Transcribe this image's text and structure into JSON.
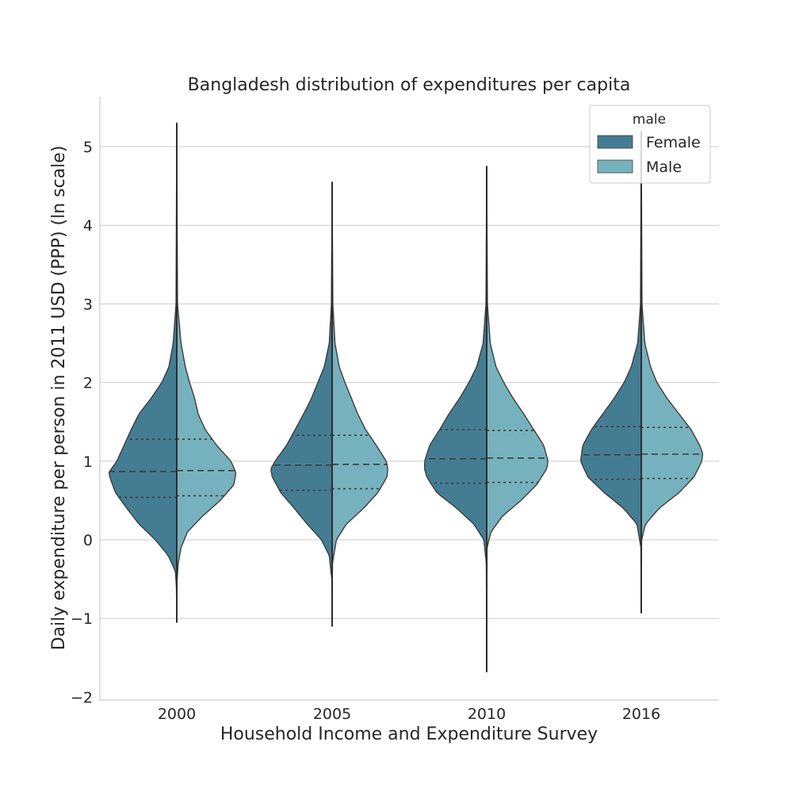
{
  "chart_data": {
    "type": "violin",
    "title": "Bangladesh distribution of expenditures per capita",
    "xlabel": "Household Income and Expenditure Survey",
    "ylabel": "Daily expenditure per person in 2011 USD (PPP) (ln scale)",
    "ylim": [
      -2.0,
      5.6
    ],
    "yticks": [
      -2,
      -1,
      0,
      1,
      2,
      3,
      4,
      5
    ],
    "ytick_labels": [
      "−2",
      "−1",
      "0",
      "1",
      "2",
      "3",
      "4",
      "5"
    ],
    "grid": "horizontal",
    "split": true,
    "categories": [
      "2000",
      "2005",
      "2010",
      "2016"
    ],
    "legend": {
      "title": "male",
      "placement": "top-right",
      "entries": [
        {
          "label": "Female",
          "color": "#447d92"
        },
        {
          "label": "Male",
          "color": "#76b2bd"
        }
      ]
    },
    "series": [
      {
        "name": "Female",
        "color": "#447d92",
        "groups": [
          {
            "min": -1.05,
            "max": 5.3,
            "q1": 0.54,
            "median": 0.87,
            "q3": 1.28,
            "profile": [
              [
                -1.05,
                0
              ],
              [
                -0.6,
                0.005
              ],
              [
                -0.4,
                0.02
              ],
              [
                -0.2,
                0.12
              ],
              [
                0,
                0.3
              ],
              [
                0.2,
                0.53
              ],
              [
                0.4,
                0.7
              ],
              [
                0.6,
                0.86
              ],
              [
                0.8,
                0.94
              ],
              [
                0.86,
                0.95
              ],
              [
                1.0,
                0.84
              ],
              [
                1.2,
                0.74
              ],
              [
                1.4,
                0.64
              ],
              [
                1.6,
                0.53
              ],
              [
                1.8,
                0.36
              ],
              [
                2.0,
                0.21
              ],
              [
                2.2,
                0.11
              ],
              [
                2.5,
                0.05
              ],
              [
                3.0,
                0.01
              ],
              [
                5.3,
                0
              ]
            ]
          },
          {
            "min": -1.1,
            "max": 4.55,
            "q1": 0.63,
            "median": 0.95,
            "q3": 1.33,
            "profile": [
              [
                -1.1,
                0
              ],
              [
                -0.5,
                0.005
              ],
              [
                -0.2,
                0.04
              ],
              [
                0,
                0.15
              ],
              [
                0.2,
                0.35
              ],
              [
                0.4,
                0.53
              ],
              [
                0.6,
                0.72
              ],
              [
                0.8,
                0.84
              ],
              [
                0.9,
                0.86
              ],
              [
                1.0,
                0.8
              ],
              [
                1.2,
                0.64
              ],
              [
                1.4,
                0.52
              ],
              [
                1.6,
                0.4
              ],
              [
                1.8,
                0.29
              ],
              [
                2.0,
                0.2
              ],
              [
                2.2,
                0.11
              ],
              [
                2.5,
                0.04
              ],
              [
                3.0,
                0.01
              ],
              [
                4.55,
                0
              ]
            ]
          },
          {
            "min": -1.68,
            "max": 4.75,
            "q1": 0.72,
            "median": 1.03,
            "q3": 1.4,
            "profile": [
              [
                -1.68,
                0
              ],
              [
                -0.3,
                0.005
              ],
              [
                0,
                0.04
              ],
              [
                0.2,
                0.18
              ],
              [
                0.4,
                0.42
              ],
              [
                0.6,
                0.7
              ],
              [
                0.8,
                0.84
              ],
              [
                0.9,
                0.87
              ],
              [
                1.0,
                0.87
              ],
              [
                1.2,
                0.8
              ],
              [
                1.4,
                0.66
              ],
              [
                1.6,
                0.53
              ],
              [
                1.8,
                0.38
              ],
              [
                2.0,
                0.25
              ],
              [
                2.2,
                0.14
              ],
              [
                2.5,
                0.05
              ],
              [
                3.0,
                0.01
              ],
              [
                4.75,
                0
              ]
            ]
          },
          {
            "min": -0.93,
            "max": 5.2,
            "q1": 0.77,
            "median": 1.08,
            "q3": 1.44,
            "profile": [
              [
                -0.93,
                0
              ],
              [
                -0.1,
                0.005
              ],
              [
                0.2,
                0.06
              ],
              [
                0.4,
                0.25
              ],
              [
                0.6,
                0.52
              ],
              [
                0.8,
                0.75
              ],
              [
                1.0,
                0.85
              ],
              [
                1.2,
                0.82
              ],
              [
                1.4,
                0.7
              ],
              [
                1.6,
                0.54
              ],
              [
                1.8,
                0.38
              ],
              [
                2.0,
                0.24
              ],
              [
                2.2,
                0.14
              ],
              [
                2.5,
                0.05
              ],
              [
                3.0,
                0.01
              ],
              [
                5.2,
                0
              ]
            ]
          }
        ]
      },
      {
        "name": "Male",
        "color": "#76b2bd",
        "groups": [
          {
            "min": -1.05,
            "max": 5.3,
            "q1": 0.56,
            "median": 0.88,
            "q3": 1.28,
            "profile": [
              [
                -1.05,
                0
              ],
              [
                -0.5,
                0.005
              ],
              [
                -0.3,
                0.02
              ],
              [
                -0.1,
                0.06
              ],
              [
                0.1,
                0.15
              ],
              [
                0.3,
                0.36
              ],
              [
                0.5,
                0.61
              ],
              [
                0.7,
                0.8
              ],
              [
                0.85,
                0.83
              ],
              [
                1.0,
                0.76
              ],
              [
                1.2,
                0.56
              ],
              [
                1.4,
                0.4
              ],
              [
                1.6,
                0.3
              ],
              [
                1.8,
                0.25
              ],
              [
                2.0,
                0.18
              ],
              [
                2.2,
                0.12
              ],
              [
                2.5,
                0.06
              ],
              [
                3.0,
                0.01
              ],
              [
                5.3,
                0
              ]
            ]
          },
          {
            "min": -1.1,
            "max": 4.55,
            "q1": 0.65,
            "median": 0.96,
            "q3": 1.33,
            "profile": [
              [
                -1.1,
                0
              ],
              [
                -0.3,
                0.005
              ],
              [
                0,
                0.06
              ],
              [
                0.2,
                0.2
              ],
              [
                0.4,
                0.44
              ],
              [
                0.6,
                0.64
              ],
              [
                0.8,
                0.77
              ],
              [
                0.9,
                0.78
              ],
              [
                1.0,
                0.76
              ],
              [
                1.2,
                0.62
              ],
              [
                1.4,
                0.47
              ],
              [
                1.6,
                0.36
              ],
              [
                1.8,
                0.27
              ],
              [
                2.0,
                0.18
              ],
              [
                2.2,
                0.1
              ],
              [
                2.5,
                0.04
              ],
              [
                3.0,
                0.01
              ],
              [
                4.55,
                0
              ]
            ]
          },
          {
            "min": -1.68,
            "max": 4.75,
            "q1": 0.73,
            "median": 1.04,
            "q3": 1.39,
            "profile": [
              [
                -1.68,
                0
              ],
              [
                -0.1,
                0.005
              ],
              [
                0.1,
                0.06
              ],
              [
                0.3,
                0.22
              ],
              [
                0.5,
                0.48
              ],
              [
                0.7,
                0.7
              ],
              [
                0.9,
                0.84
              ],
              [
                1.0,
                0.86
              ],
              [
                1.2,
                0.8
              ],
              [
                1.4,
                0.66
              ],
              [
                1.6,
                0.52
              ],
              [
                1.8,
                0.37
              ],
              [
                2.0,
                0.24
              ],
              [
                2.2,
                0.13
              ],
              [
                2.5,
                0.05
              ],
              [
                3.0,
                0.01
              ],
              [
                4.75,
                0
              ]
            ]
          },
          {
            "min": -0.93,
            "max": 5.2,
            "q1": 0.78,
            "median": 1.09,
            "q3": 1.43,
            "profile": [
              [
                -0.93,
                0
              ],
              [
                0,
                0.005
              ],
              [
                0.2,
                0.06
              ],
              [
                0.4,
                0.25
              ],
              [
                0.6,
                0.53
              ],
              [
                0.8,
                0.74
              ],
              [
                1.0,
                0.85
              ],
              [
                1.1,
                0.86
              ],
              [
                1.2,
                0.82
              ],
              [
                1.4,
                0.7
              ],
              [
                1.6,
                0.53
              ],
              [
                1.8,
                0.36
              ],
              [
                2.0,
                0.22
              ],
              [
                2.2,
                0.13
              ],
              [
                2.5,
                0.05
              ],
              [
                3.0,
                0.01
              ],
              [
                5.2,
                0
              ]
            ]
          }
        ]
      }
    ]
  }
}
